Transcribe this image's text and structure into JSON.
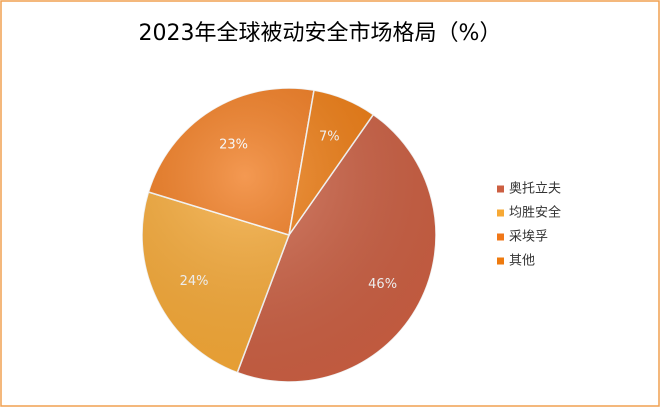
{
  "chart_data": {
    "type": "pie",
    "title": "2023年全球被动安全市场格局（%）",
    "categories": [
      "奥托立夫",
      "均胜安全",
      "采埃孚",
      "其他"
    ],
    "values": [
      46,
      24,
      23,
      7
    ],
    "value_labels": [
      "46%",
      "24%",
      "23%",
      "7%"
    ],
    "colors": [
      "#cc5f42",
      "#f7a935",
      "#f07718",
      "#ee7a0e"
    ]
  }
}
